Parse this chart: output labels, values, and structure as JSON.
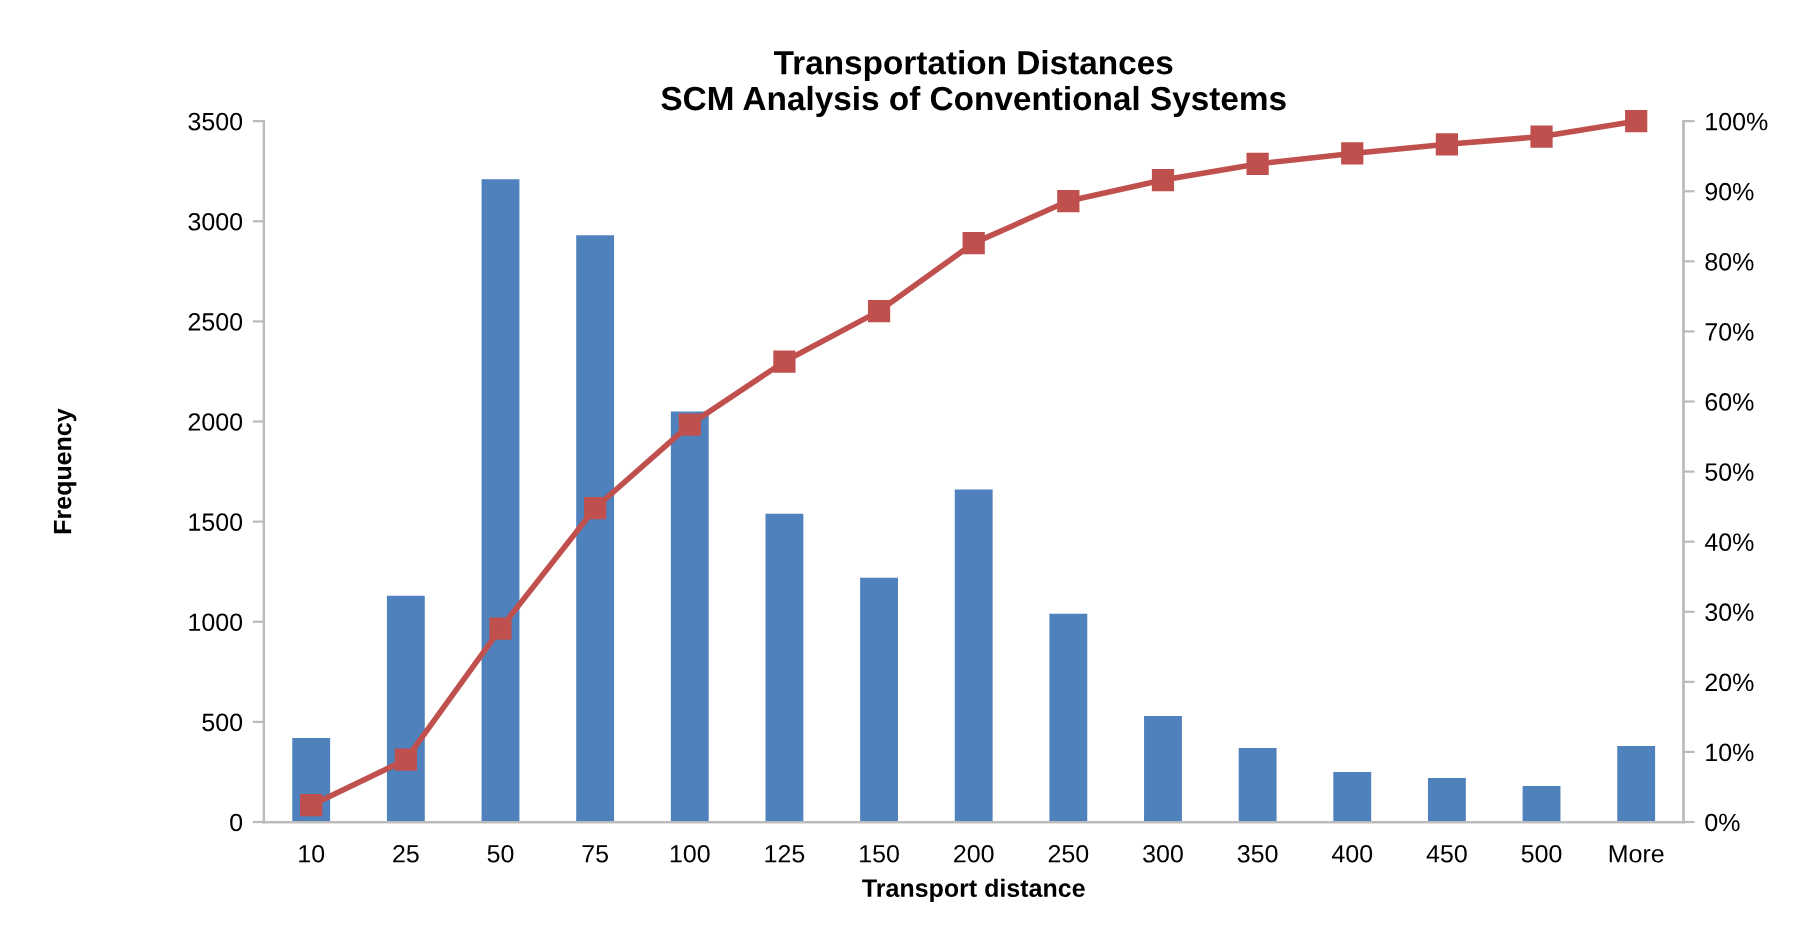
{
  "chart_data": {
    "type": "bar",
    "title": "Transportation Distances\nSCM Analysis of Conventional Systems",
    "xlabel": "Transport distance",
    "ylabel": "Frequency",
    "categories": [
      "10",
      "25",
      "50",
      "75",
      "100",
      "125",
      "150",
      "200",
      "250",
      "300",
      "350",
      "400",
      "450",
      "500",
      "More"
    ],
    "series": [
      {
        "color": "#4f81bd",
        "values": [
          420,
          1130,
          3210,
          2930,
          2050,
          1540,
          1220,
          1660,
          1040,
          530,
          370,
          250,
          220,
          180,
          380
        ]
      },
      {
        "type": "line",
        "axis": "y2",
        "color": "#c0504d",
        "marker": "square",
        "values": [
          2.4,
          8.9,
          27.6,
          44.8,
          56.7,
          65.7,
          72.9,
          82.6,
          88.6,
          91.6,
          93.9,
          95.4,
          96.7,
          97.8,
          100
        ]
      }
    ],
    "ylim": [
      0,
      3500
    ],
    "yticks": [
      0,
      500,
      1000,
      1500,
      2000,
      2500,
      3000,
      3500
    ],
    "y2lim": [
      0,
      100
    ],
    "y2ticks": [
      {
        "value": 0,
        "label": "0%"
      },
      {
        "value": 10,
        "label": "10%"
      },
      {
        "value": 20,
        "label": "20%"
      },
      {
        "value": 30,
        "label": "30%"
      },
      {
        "value": 40,
        "label": "40%"
      },
      {
        "value": 50,
        "label": "50%"
      },
      {
        "value": 60,
        "label": "60%"
      },
      {
        "value": 70,
        "label": "70%"
      },
      {
        "value": 80,
        "label": "80%"
      },
      {
        "value": 90,
        "label": "90%"
      },
      {
        "value": 100,
        "label": "100%"
      }
    ],
    "grid": false,
    "legend": false
  }
}
